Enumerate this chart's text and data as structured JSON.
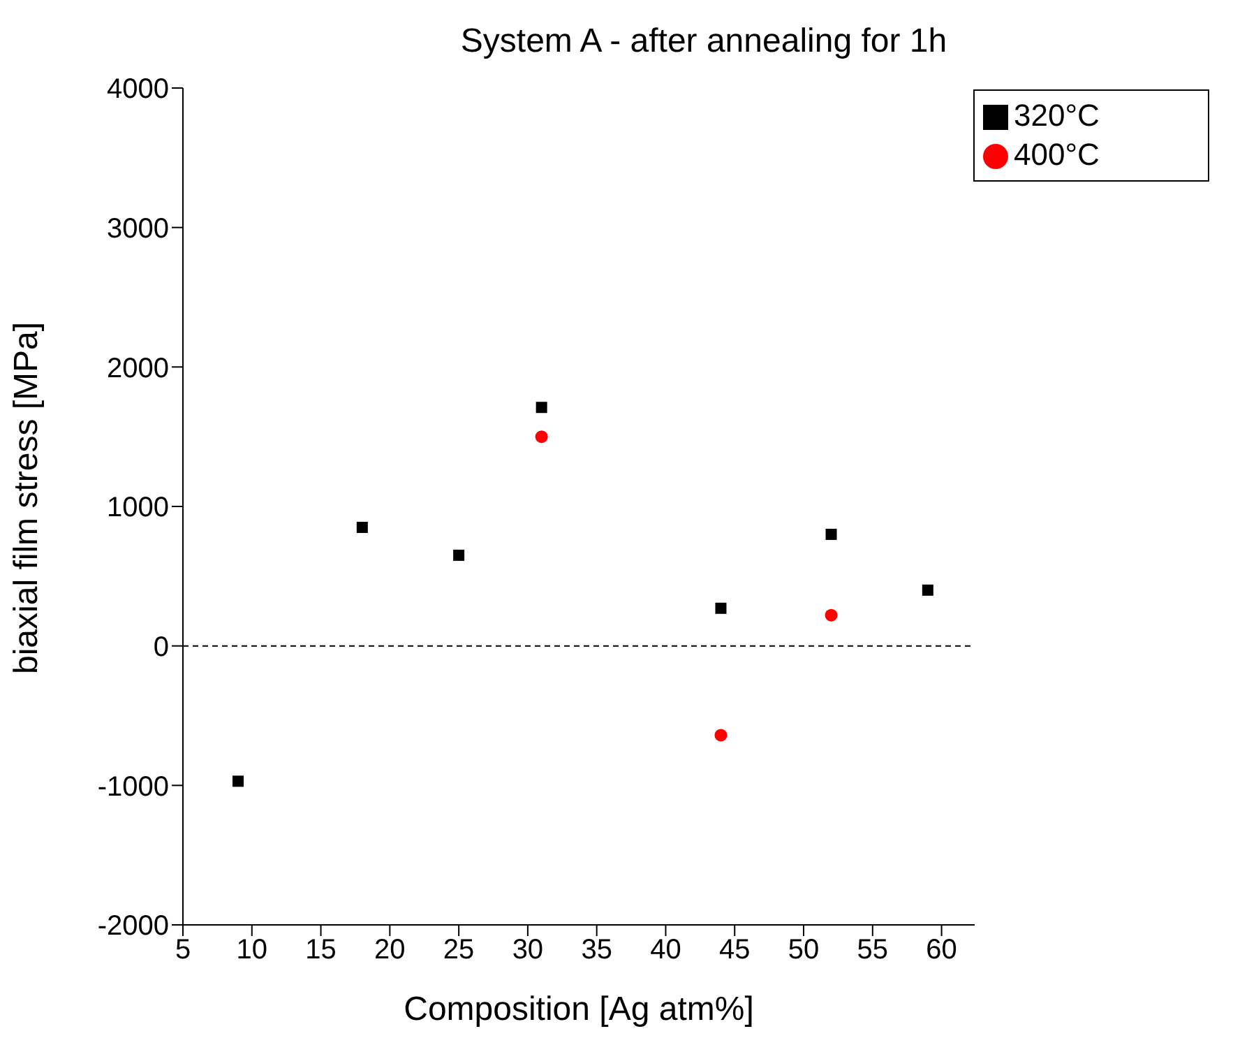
{
  "chart_data": {
    "type": "scatter",
    "title": "System A - after annealing for 1h",
    "xlabel": "Composition [Ag atm%]",
    "ylabel": "biaxial film stress [MPa]",
    "series": [
      {
        "name": "320°C",
        "color": "#000000",
        "marker": "square",
        "x": [
          9,
          18,
          25,
          31,
          44,
          52,
          59
        ],
        "values": [
          -970,
          850,
          650,
          1710,
          270,
          800,
          400
        ]
      },
      {
        "name": "400°C",
        "color": "#ff0000",
        "marker": "circle",
        "x": [
          31,
          44,
          52
        ],
        "values": [
          1500,
          -640,
          220
        ]
      }
    ],
    "xlim": [
      5,
      62.4
    ],
    "xticks": [
      5,
      10,
      15,
      20,
      25,
      30,
      35,
      40,
      45,
      50,
      55,
      60
    ],
    "ylim": [
      -2000,
      4000
    ],
    "yticks": [
      -2000,
      -1000,
      0,
      1000,
      2000,
      3000,
      4000
    ],
    "ref_lines": [
      {
        "axis": "y",
        "value": 0,
        "color": "#000000",
        "line_style": "dashed"
      }
    ],
    "grid": false,
    "legend": "top right"
  }
}
